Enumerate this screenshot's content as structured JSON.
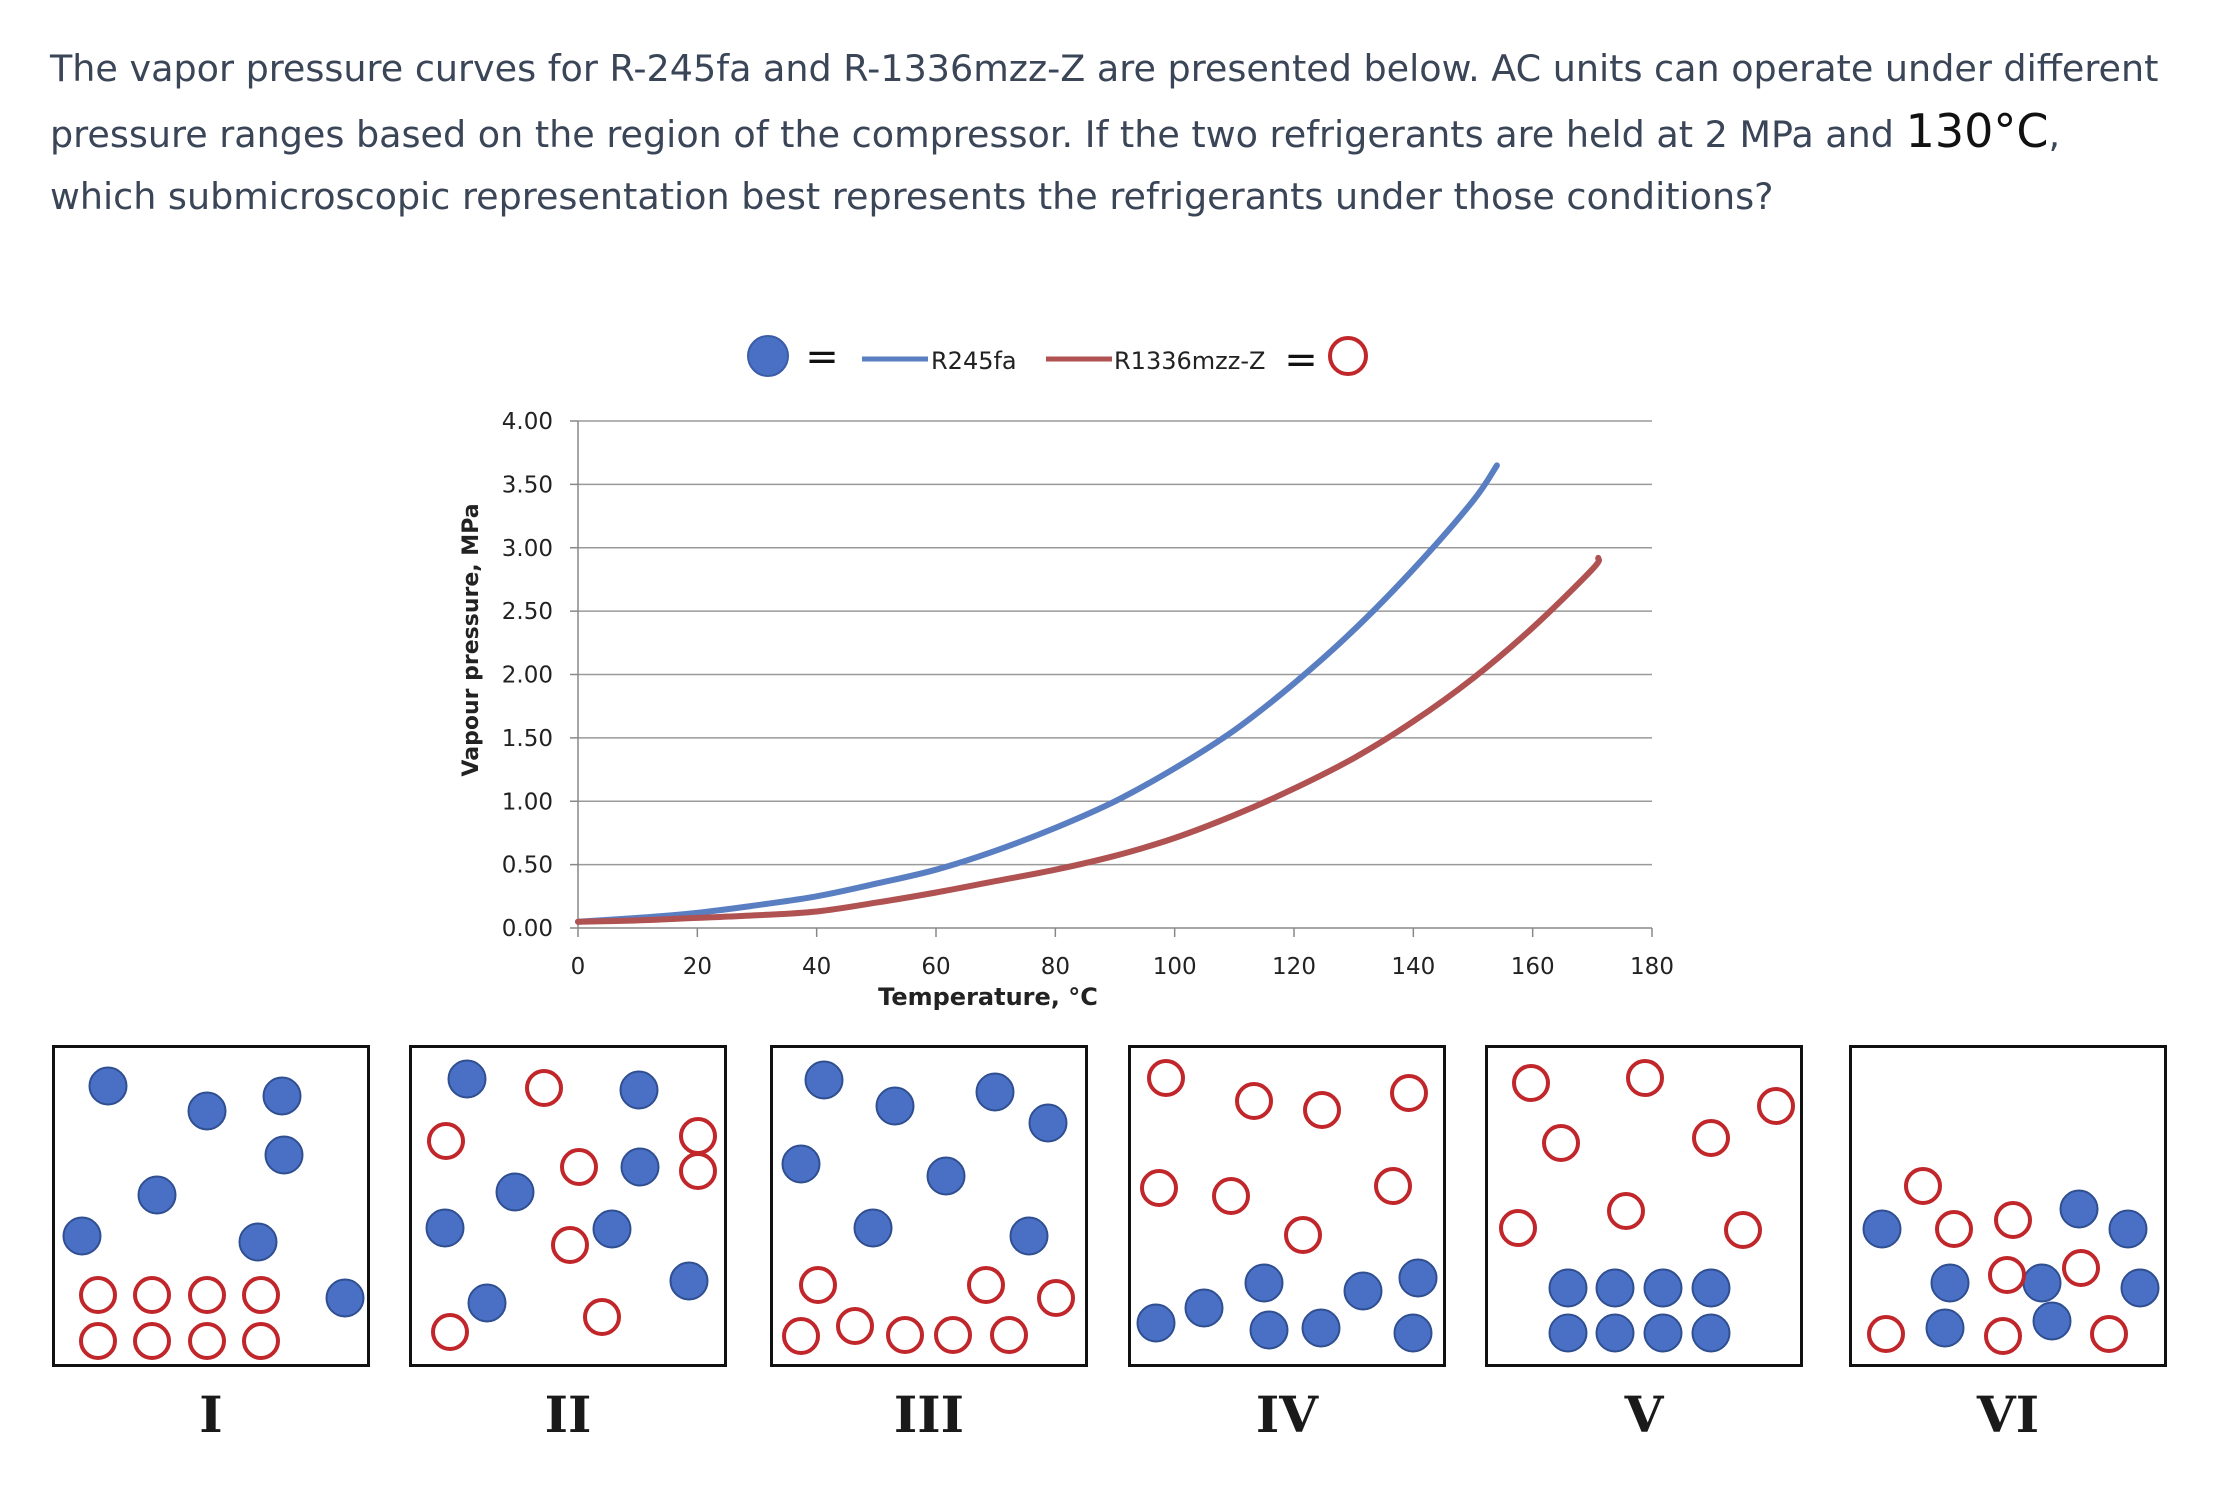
{
  "question": {
    "part1": "The vapor pressure curves for R-245fa and R-1336mzz-Z are presented below. AC units can operate under different pressure ranges based on the region of the compressor. If the two refrigerants are held at 2 MPa and ",
    "temperature": "130°C",
    "part2": ", which submicroscopic representation best represents the refrigerants under those conditions?"
  },
  "colors": {
    "r245fa": "#5a7ec2",
    "r1336mzz": "#b05252",
    "filled_particle": "#4a70c6",
    "open_particle": "#c0262a"
  },
  "legend": {
    "equals": "=",
    "placement": "top-center",
    "filled_symbol": "filled-blue-circle",
    "open_symbol": "open-red-circle"
  },
  "chart_data": {
    "type": "line",
    "xlabel": "Temperature, °C",
    "ylabel": "Vapour pressure, MPa",
    "xlim": [
      0,
      180
    ],
    "ylim": [
      0,
      4
    ],
    "xticks": [
      "0",
      "20",
      "40",
      "60",
      "80",
      "100",
      "120",
      "140",
      "160",
      "180"
    ],
    "yticks": [
      "0.00",
      "0.50",
      "1.00",
      "1.50",
      "2.00",
      "2.50",
      "3.00",
      "3.50",
      "4.00"
    ],
    "grid": "horizontal",
    "series": [
      {
        "name": "R245fa",
        "x": [
          0,
          10,
          20,
          30,
          40,
          50,
          60,
          70,
          80,
          90,
          100,
          110,
          120,
          130,
          140,
          150,
          154
        ],
        "y": [
          0.05,
          0.08,
          0.12,
          0.18,
          0.25,
          0.35,
          0.46,
          0.61,
          0.79,
          1.0,
          1.26,
          1.56,
          1.93,
          2.35,
          2.83,
          3.37,
          3.65
        ]
      },
      {
        "name": "R1336mzz-Z",
        "x": [
          0,
          10,
          20,
          30,
          40,
          50,
          60,
          70,
          80,
          90,
          100,
          110,
          120,
          130,
          140,
          150,
          160,
          170,
          171
        ],
        "y": [
          0.05,
          0.06,
          0.08,
          0.1,
          0.13,
          0.2,
          0.28,
          0.37,
          0.46,
          0.57,
          0.71,
          0.89,
          1.1,
          1.34,
          1.63,
          1.97,
          2.37,
          2.83,
          2.92
        ]
      }
    ]
  },
  "panels": [
    {
      "label": "I",
      "filled": [
        [
          53,
          38
        ],
        [
          152,
          63
        ],
        [
          227,
          48
        ],
        [
          102,
          147
        ],
        [
          229,
          107
        ],
        [
          27,
          188
        ],
        [
          203,
          194
        ],
        [
          290,
          250
        ]
      ],
      "open": [
        [
          43,
          247
        ],
        [
          97,
          247
        ],
        [
          152,
          247
        ],
        [
          206,
          247
        ],
        [
          43,
          293
        ],
        [
          97,
          293
        ],
        [
          152,
          293
        ],
        [
          206,
          293
        ]
      ]
    },
    {
      "label": "II",
      "filled": [
        [
          55,
          31
        ],
        [
          227,
          42
        ],
        [
          103,
          144
        ],
        [
          228,
          119
        ],
        [
          33,
          180
        ],
        [
          200,
          181
        ],
        [
          75,
          255
        ],
        [
          277,
          233
        ]
      ],
      "open": [
        [
          132,
          40
        ],
        [
          34,
          93
        ],
        [
          167,
          119
        ],
        [
          286,
          88
        ],
        [
          286,
          123
        ],
        [
          158,
          197
        ],
        [
          38,
          284
        ],
        [
          190,
          269
        ]
      ]
    },
    {
      "label": "III",
      "filled": [
        [
          51,
          32
        ],
        [
          122,
          58
        ],
        [
          222,
          44
        ],
        [
          275,
          75
        ],
        [
          28,
          116
        ],
        [
          173,
          128
        ],
        [
          100,
          180
        ],
        [
          256,
          188
        ]
      ],
      "open": [
        [
          45,
          237
        ],
        [
          213,
          237
        ],
        [
          283,
          250
        ],
        [
          28,
          288
        ],
        [
          82,
          278
        ],
        [
          132,
          287
        ],
        [
          180,
          287
        ],
        [
          236,
          287
        ]
      ]
    },
    {
      "label": "IV",
      "filled": [
        [
          133,
          235
        ],
        [
          287,
          230
        ],
        [
          73,
          260
        ],
        [
          232,
          243
        ],
        [
          25,
          275
        ],
        [
          138,
          282
        ],
        [
          190,
          280
        ],
        [
          282,
          285
        ]
      ],
      "open": [
        [
          35,
          30
        ],
        [
          123,
          53
        ],
        [
          191,
          62
        ],
        [
          278,
          45
        ],
        [
          28,
          140
        ],
        [
          100,
          148
        ],
        [
          262,
          138
        ],
        [
          172,
          187
        ]
      ]
    },
    {
      "label": "V",
      "filled": [
        [
          80,
          240
        ],
        [
          127,
          240
        ],
        [
          175,
          240
        ],
        [
          223,
          240
        ],
        [
          80,
          285
        ],
        [
          127,
          285
        ],
        [
          175,
          285
        ],
        [
          223,
          285
        ]
      ],
      "open": [
        [
          43,
          35
        ],
        [
          157,
          30
        ],
        [
          288,
          58
        ],
        [
          73,
          95
        ],
        [
          223,
          90
        ],
        [
          30,
          180
        ],
        [
          138,
          163
        ],
        [
          255,
          182
        ]
      ]
    },
    {
      "label": "VI",
      "filled": [
        [
          227,
          161
        ],
        [
          276,
          181
        ],
        [
          30,
          181
        ],
        [
          98,
          235
        ],
        [
          190,
          235
        ],
        [
          288,
          240
        ],
        [
          93,
          280
        ],
        [
          200,
          273
        ]
      ],
      "open": [
        [
          71,
          138
        ],
        [
          102,
          181
        ],
        [
          161,
          172
        ],
        [
          155,
          227
        ],
        [
          229,
          220
        ],
        [
          34,
          286
        ],
        [
          151,
          288
        ],
        [
          257,
          286
        ]
      ]
    }
  ]
}
